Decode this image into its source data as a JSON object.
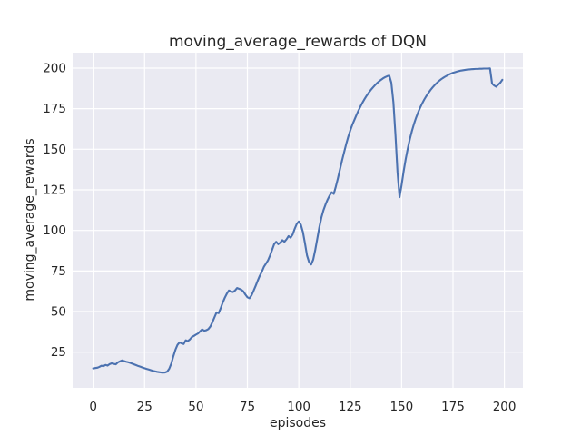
{
  "figure": {
    "background_color": "#ffffff",
    "axes_background_color": "#eaeaf2",
    "grid_color": "#ffffff",
    "text_color": "#262626"
  },
  "chart_data": {
    "type": "line",
    "title": "moving_average_rewards of DQN",
    "xlabel": "episodes",
    "ylabel": "moving_average_rewards",
    "x_ticks": [
      0,
      25,
      50,
      75,
      100,
      125,
      150,
      175,
      200
    ],
    "y_ticks": [
      25,
      50,
      75,
      100,
      125,
      150,
      175,
      200
    ],
    "xlim": [
      -10,
      209
    ],
    "ylim": [
      3,
      209.5
    ],
    "grid": true,
    "legend_position": "none",
    "series": [
      {
        "name": "moving_average_rewards",
        "color": "#4c72b0",
        "line_width": 2.1,
        "x_start": 0,
        "x_step": 1,
        "values": [
          15.0,
          15.2,
          15.4,
          15.9,
          16.6,
          16.4,
          17.1,
          16.7,
          17.6,
          18.1,
          17.8,
          17.5,
          18.7,
          19.3,
          19.9,
          19.5,
          19.1,
          18.8,
          18.4,
          17.9,
          17.4,
          16.9,
          16.4,
          16.0,
          15.5,
          15.1,
          14.7,
          14.3,
          13.9,
          13.5,
          13.2,
          12.9,
          12.7,
          12.5,
          12.4,
          12.5,
          13.0,
          14.8,
          18.0,
          22.5,
          26.5,
          29.5,
          31.0,
          30.4,
          30.0,
          32.3,
          31.8,
          32.8,
          34.3,
          35.0,
          35.8,
          36.5,
          37.8,
          39.0,
          38.2,
          38.5,
          39.2,
          40.8,
          43.5,
          46.5,
          49.5,
          49.0,
          52.0,
          55.5,
          58.5,
          61.0,
          63.0,
          62.4,
          62.0,
          63.0,
          64.5,
          64.0,
          63.5,
          62.5,
          60.5,
          58.8,
          58.2,
          60.0,
          62.8,
          65.8,
          69.0,
          72.0,
          74.5,
          77.5,
          79.5,
          81.5,
          84.5,
          88.0,
          91.5,
          93.0,
          91.5,
          92.5,
          94.0,
          93.0,
          94.5,
          96.5,
          95.5,
          97.5,
          101.0,
          104.0,
          105.5,
          103.5,
          99.0,
          92.0,
          84.5,
          80.5,
          79.0,
          82.0,
          88.0,
          95.0,
          102.0,
          108.0,
          112.5,
          116.0,
          119.0,
          121.5,
          123.5,
          122.5,
          127.0,
          132.0,
          137.5,
          143.0,
          148.0,
          153.0,
          157.5,
          161.5,
          165.0,
          168.0,
          171.0,
          173.8,
          176.4,
          178.8,
          181.0,
          183.0,
          184.8,
          186.5,
          188.0,
          189.4,
          190.7,
          191.8,
          192.8,
          193.7,
          194.4,
          195.0,
          195.4,
          191.0,
          179.0,
          159.0,
          136.0,
          120.5,
          128.0,
          136.5,
          144.0,
          150.5,
          156.2,
          161.2,
          165.5,
          169.3,
          172.6,
          175.6,
          178.2,
          180.6,
          182.7,
          184.6,
          186.4,
          188.0,
          189.4,
          190.7,
          191.9,
          192.9,
          193.8,
          194.6,
          195.3,
          196.0,
          196.6,
          197.1,
          197.5,
          197.9,
          198.2,
          198.5,
          198.7,
          198.9,
          199.1,
          199.2,
          199.3,
          199.4,
          199.5,
          199.5,
          199.6,
          199.6,
          199.7,
          199.7,
          199.7,
          199.8,
          190.5,
          189.3,
          188.5,
          189.8,
          191.0,
          192.8
        ]
      }
    ]
  }
}
